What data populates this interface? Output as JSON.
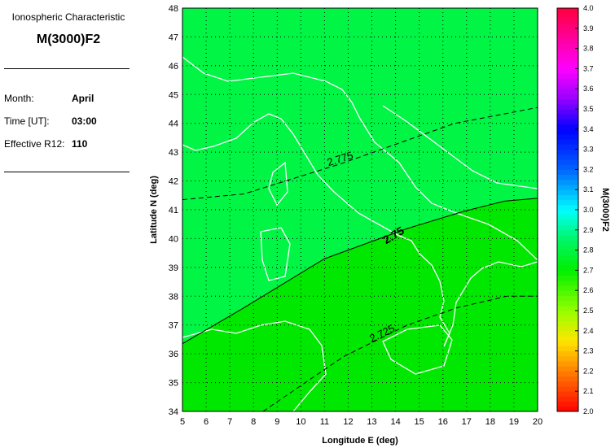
{
  "side": {
    "subtitle": "Ionospheric Characteristic",
    "title": "M(3000)F2",
    "rows": [
      {
        "label": "Month:",
        "value": "April"
      },
      {
        "label": "Time [UT]:",
        "value": "03:00"
      },
      {
        "label": "Effective R12:",
        "value": "110"
      }
    ]
  },
  "chart_data": {
    "type": "heatmap",
    "xlabel": "Longitude E (deg)",
    "ylabel": "Latitude N (deg)",
    "xlim": [
      5,
      20
    ],
    "ylim": [
      34,
      48
    ],
    "xticks": [
      5,
      6,
      7,
      8,
      9,
      10,
      11,
      12,
      13,
      14,
      15,
      16,
      17,
      18,
      19,
      20
    ],
    "yticks": [
      34,
      35,
      36,
      37,
      38,
      39,
      40,
      41,
      42,
      43,
      44,
      45,
      46,
      47,
      48
    ],
    "grid": true,
    "fill_colors": {
      "above_2.75": "#00f545",
      "below_2.75": "#00e800",
      "coastline": "#ffffff"
    },
    "contours": [
      {
        "level": "2.775",
        "style": "dashed",
        "points": [
          [
            5,
            41.35
          ],
          [
            7.6,
            41.55
          ],
          [
            11.7,
            42.6
          ],
          [
            16.5,
            44.0
          ],
          [
            20,
            44.55
          ]
        ]
      },
      {
        "level": "2.75",
        "style": "solid",
        "points": [
          [
            5,
            36.35
          ],
          [
            7.6,
            37.6
          ],
          [
            11,
            39.3
          ],
          [
            14.5,
            40.35
          ],
          [
            16.9,
            40.95
          ],
          [
            18.6,
            41.3
          ],
          [
            20,
            41.4
          ]
        ]
      },
      {
        "level": "2.725",
        "style": "dashed",
        "points": [
          [
            8.4,
            34
          ],
          [
            11.8,
            35.9
          ],
          [
            14.5,
            37.0
          ],
          [
            16.6,
            37.6
          ],
          [
            18.7,
            38.0
          ],
          [
            20,
            38.0
          ]
        ]
      }
    ],
    "colorbar": {
      "label": "M(3000)F2",
      "range": [
        2.0,
        4.0
      ],
      "ticks": [
        "2.0",
        "2.1",
        "2.2",
        "2.3",
        "2.4",
        "2.5",
        "2.6",
        "2.7",
        "2.8",
        "2.9",
        "3.0",
        "3.1",
        "3.2",
        "3.3",
        "3.4",
        "3.5",
        "3.6",
        "3.7",
        "3.8",
        "3.9",
        "4.0"
      ]
    }
  }
}
